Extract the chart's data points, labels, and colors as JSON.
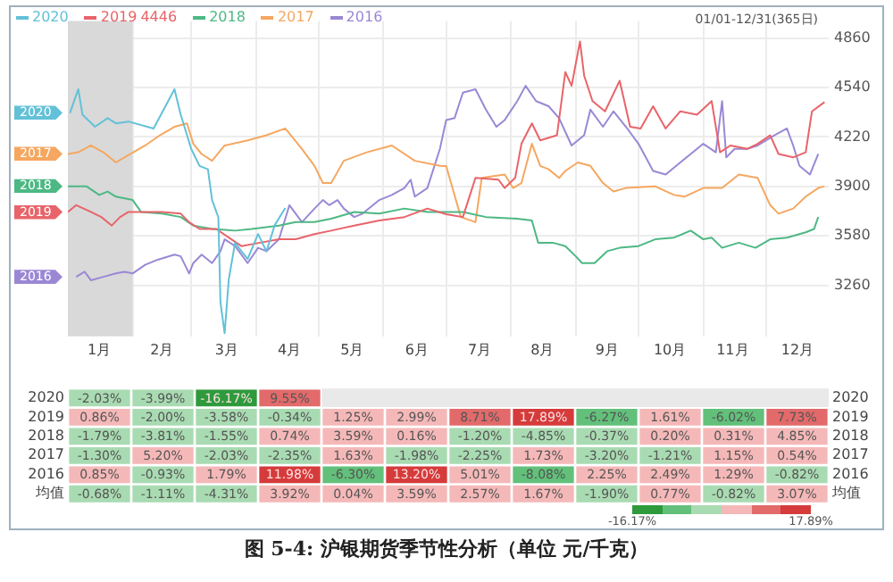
{
  "chart_data": [
    {
      "type": "line",
      "annotations": [
        "01/01-12/31(365日)",
        "4446"
      ],
      "xlim": [
        "--01-01",
        "--12-31"
      ],
      "xticks": [
        {
          "value": "--01-16",
          "label": "1月"
        },
        {
          "value": "--02-15",
          "label": "2月"
        },
        {
          "value": "--03-18",
          "label": "3月"
        },
        {
          "value": "--04-17",
          "label": "4月"
        },
        {
          "value": "--05-17",
          "label": "5月"
        },
        {
          "value": "--06-17",
          "label": "6月"
        },
        {
          "value": "--07-17",
          "label": "7月"
        },
        {
          "value": "--08-16",
          "label": "8月"
        },
        {
          "value": "--09-16",
          "label": "9月"
        },
        {
          "value": "--10-16",
          "label": "10月"
        },
        {
          "value": "--11-15",
          "label": "11月"
        },
        {
          "value": "--12-16",
          "label": "12月"
        },
        {
          "value": "--02-01",
          "label": null
        },
        {
          "value": "--03-01",
          "label": null
        },
        {
          "value": "--04-01",
          "label": null
        },
        {
          "value": "--05-01",
          "label": null
        },
        {
          "value": "--06-01",
          "label": null
        },
        {
          "value": "--07-01",
          "label": null
        },
        {
          "value": "--08-01",
          "label": null
        },
        {
          "value": "--09-01",
          "label": null
        },
        {
          "value": "--10-01",
          "label": null
        },
        {
          "value": "--11-01",
          "label": null
        },
        {
          "value": "--12-01",
          "label": null
        }
      ],
      "ylim": [
        2930,
        4970
      ],
      "yticks": [
        3260,
        3580,
        3900,
        4220,
        4540,
        4860
      ],
      "grid": true,
      "legend": "top left",
      "marker": "none",
      "line_style": "solid",
      "bands": [
        {
          "axis": "x",
          "from": "--01-01",
          "to": "--02-01",
          "color": "#d9d9d9"
        }
      ],
      "series": [
        {
          "name": "2020",
          "color": "#62c1d8",
          "x": [
            "--01-02",
            "--01-06",
            "--01-08",
            "--01-14",
            "--01-20",
            "--01-24",
            "--01-30",
            "--02-11",
            "--02-21",
            "--02-24",
            "--03-01",
            "--03-05",
            "--03-09",
            "--03-11",
            "--03-14",
            "--03-15",
            "--03-17",
            "--03-19",
            "--03-22",
            "--03-25",
            "--03-28",
            "--04-02",
            "--04-06",
            "--04-10",
            "--04-15"
          ],
          "values": [
            4375,
            4529,
            4364,
            4286,
            4342,
            4308,
            4320,
            4275,
            4529,
            4364,
            4143,
            4033,
            4011,
            3812,
            3700,
            3150,
            2950,
            3300,
            3536,
            3481,
            3430,
            3592,
            3480,
            3650,
            3760
          ]
        },
        {
          "name": "2019",
          "color": "#e8646a",
          "x": [
            "--01-01",
            "--01-05",
            "--01-12",
            "--01-17",
            "--01-22",
            "--01-26",
            "--01-30",
            "--02-07",
            "--02-15",
            "--02-24",
            "--02-28",
            "--03-05",
            "--03-13",
            "--03-19",
            "--03-25",
            "--04-03",
            "--04-12",
            "--04-20",
            "--04-29",
            "--05-07",
            "--05-18",
            "--05-30",
            "--06-11",
            "--06-22",
            "--07-01",
            "--07-09",
            "--07-15",
            "--07-26",
            "--07-29",
            "--08-03",
            "--08-06",
            "--08-11",
            "--08-15",
            "--08-23",
            "--08-27",
            "--08-30",
            "--09-03",
            "--09-05",
            "--09-09",
            "--09-15",
            "--09-22",
            "--09-27",
            "--10-02",
            "--10-08",
            "--10-14",
            "--10-21",
            "--10-29",
            "--11-05",
            "--11-09",
            "--11-14",
            "--11-22",
            "--11-27",
            "--12-03",
            "--12-07",
            "--12-14",
            "--12-20",
            "--12-23",
            "--12-29"
          ],
          "values": [
            3735,
            3779,
            3735,
            3702,
            3647,
            3702,
            3735,
            3735,
            3735,
            3724,
            3669,
            3625,
            3625,
            3569,
            3514,
            3536,
            3558,
            3558,
            3592,
            3614,
            3647,
            3680,
            3702,
            3757,
            3720,
            3702,
            3955,
            3944,
            3890,
            3955,
            4176,
            4308,
            4198,
            4231,
            4640,
            4551,
            4838,
            4617,
            4452,
            4386,
            4584,
            4286,
            4275,
            4419,
            4275,
            4386,
            4364,
            4452,
            4121,
            4165,
            4143,
            4176,
            4231,
            4110,
            4088,
            4121,
            4386,
            4446
          ]
        },
        {
          "name": "2018",
          "color": "#4db884",
          "x": [
            "--01-01",
            "--01-10",
            "--01-16",
            "--01-20",
            "--01-24",
            "--02-01",
            "--02-05",
            "--02-15",
            "--02-24",
            "--03-02",
            "--03-11",
            "--03-22",
            "--03-30",
            "--04-12",
            "--04-20",
            "--04-29",
            "--05-07",
            "--05-18",
            "--05-30",
            "--06-11",
            "--06-22",
            "--07-01",
            "--07-09",
            "--07-20",
            "--08-04",
            "--08-11",
            "--08-14",
            "--08-21",
            "--08-27",
            "--09-01",
            "--09-04",
            "--09-10",
            "--09-16",
            "--09-22",
            "--10-01",
            "--10-09",
            "--10-18",
            "--10-26",
            "--11-01",
            "--11-05",
            "--11-10",
            "--11-18",
            "--11-26",
            "--12-03",
            "--12-11",
            "--12-20",
            "--12-24",
            "--12-26"
          ],
          "values": [
            3900,
            3900,
            3845,
            3867,
            3834,
            3812,
            3735,
            3724,
            3702,
            3647,
            3625,
            3614,
            3625,
            3647,
            3669,
            3669,
            3691,
            3735,
            3724,
            3757,
            3735,
            3735,
            3735,
            3702,
            3691,
            3680,
            3536,
            3536,
            3514,
            3448,
            3404,
            3404,
            3481,
            3503,
            3514,
            3558,
            3569,
            3614,
            3558,
            3569,
            3503,
            3536,
            3503,
            3558,
            3569,
            3603,
            3625,
            3702
          ]
        },
        {
          "name": "2017",
          "color": "#f5a760",
          "x": [
            "--01-01",
            "--01-06",
            "--01-12",
            "--01-18",
            "--01-24",
            "--01-28",
            "--02-07",
            "--02-14",
            "--02-21",
            "--02-27",
            "--03-02",
            "--03-06",
            "--03-11",
            "--03-17",
            "--03-28",
            "--04-06",
            "--04-15",
            "--04-23",
            "--04-29",
            "--05-03",
            "--05-07",
            "--05-13",
            "--05-24",
            "--06-05",
            "--06-16",
            "--06-28",
            "--07-01",
            "--07-08",
            "--07-15",
            "--07-18",
            "--07-29",
            "--08-02",
            "--08-06",
            "--08-11",
            "--08-15",
            "--08-19",
            "--08-24",
            "--08-27",
            "--09-02",
            "--09-08",
            "--09-14",
            "--09-19",
            "--09-25",
            "--10-09",
            "--10-18",
            "--10-23",
            "--11-01",
            "--11-10",
            "--11-18",
            "--11-27",
            "--12-03",
            "--12-07",
            "--12-14",
            "--12-20",
            "--12-26",
            "--12-29"
          ],
          "values": [
            4110,
            4121,
            4165,
            4121,
            4055,
            4088,
            4165,
            4231,
            4286,
            4308,
            4176,
            4110,
            4066,
            4165,
            4198,
            4231,
            4275,
            4143,
            4033,
            3922,
            3922,
            4066,
            4121,
            4165,
            4066,
            4033,
            4032,
            3702,
            3669,
            3955,
            3977,
            3890,
            3922,
            4176,
            4033,
            4011,
            3955,
            4000,
            4055,
            4033,
            3922,
            3867,
            3890,
            3900,
            3845,
            3834,
            3890,
            3890,
            3977,
            3955,
            3779,
            3724,
            3757,
            3834,
            3890,
            3900
          ]
        },
        {
          "name": "2016",
          "color": "#9a88d4",
          "x": [
            "--01-05",
            "--01-09",
            "--01-12",
            "--01-18",
            "--01-24",
            "--01-28",
            "--02-01",
            "--02-07",
            "--02-13",
            "--02-21",
            "--02-24",
            "--02-28",
            "--03-02",
            "--03-06",
            "--03-11",
            "--03-15",
            "--03-17",
            "--03-22",
            "--03-28",
            "--04-02",
            "--04-06",
            "--04-12",
            "--04-17",
            "--04-23",
            "--04-29",
            "--05-03",
            "--05-06",
            "--05-10",
            "--05-13",
            "--05-18",
            "--05-22",
            "--05-30",
            "--06-05",
            "--06-11",
            "--06-14",
            "--06-16",
            "--06-22",
            "--06-28",
            "--07-01",
            "--07-05",
            "--07-09",
            "--07-15",
            "--07-20",
            "--07-25",
            "--07-29",
            "--08-04",
            "--08-08",
            "--08-13",
            "--08-19",
            "--08-24",
            "--08-30",
            "--09-05",
            "--09-08",
            "--09-14",
            "--09-19",
            "--09-25",
            "--10-01",
            "--10-08",
            "--10-14",
            "--10-21",
            "--10-26",
            "--11-01",
            "--11-07",
            "--11-10",
            "--11-12",
            "--11-16",
            "--11-22",
            "--11-27",
            "--12-05",
            "--12-11",
            "--12-14",
            "--12-17",
            "--12-22",
            "--12-26"
          ],
          "values": [
            3315,
            3348,
            3293,
            3315,
            3337,
            3348,
            3337,
            3393,
            3426,
            3459,
            3448,
            3337,
            3404,
            3459,
            3404,
            3481,
            3558,
            3514,
            3404,
            3503,
            3481,
            3558,
            3779,
            3669,
            3757,
            3812,
            3779,
            3812,
            3757,
            3702,
            3724,
            3812,
            3845,
            3890,
            3944,
            3834,
            3890,
            4143,
            4330,
            4342,
            4507,
            4529,
            4397,
            4286,
            4330,
            4452,
            4551,
            4452,
            4419,
            4342,
            4165,
            4231,
            4397,
            4286,
            4386,
            4286,
            4176,
            4000,
            3977,
            4055,
            4110,
            4176,
            4121,
            4452,
            4088,
            4143,
            4143,
            4165,
            4231,
            4275,
            4165,
            4033,
            3977,
            4110
          ]
        }
      ]
    },
    {
      "type": "heatmap",
      "title": "图 5-4: 沪银期货季节性分析（单位 元/千克）",
      "categories": [
        null,
        null,
        null,
        null,
        null,
        null,
        null,
        null,
        null,
        null,
        null,
        null
      ],
      "y_categories": [
        "2020",
        "2019",
        "2018",
        "2017",
        "2016",
        "均值"
      ],
      "y2_categories": [
        "2020",
        "2019",
        "2018",
        "2017",
        "2016",
        "均值"
      ],
      "cells": [
        [
          -2.03,
          -3.99,
          -16.17,
          9.55,
          null,
          null,
          null,
          null,
          null,
          null,
          null,
          null
        ],
        [
          0.86,
          -2.0,
          -3.58,
          -0.34,
          1.25,
          2.99,
          8.71,
          17.89,
          -6.27,
          1.61,
          -6.02,
          7.73
        ],
        [
          -1.79,
          -3.81,
          -1.55,
          0.74,
          3.59,
          0.16,
          -1.2,
          -4.85,
          -0.37,
          0.2,
          0.31,
          4.85
        ],
        [
          -1.3,
          5.2,
          -2.03,
          -2.35,
          1.63,
          -1.98,
          -2.25,
          1.73,
          -3.2,
          -1.21,
          1.15,
          0.54
        ],
        [
          0.85,
          -0.93,
          1.79,
          11.98,
          -6.3,
          13.2,
          5.01,
          -8.08,
          2.25,
          2.49,
          1.29,
          -0.82
        ],
        [
          -0.68,
          -1.11,
          -4.31,
          3.92,
          0.04,
          3.59,
          2.57,
          1.67,
          -1.9,
          0.77,
          -0.82,
          3.07
        ]
      ],
      "cell_labels": [
        [
          "-2.03%",
          "-3.99%",
          "-16.17%",
          "9.55%",
          null,
          null,
          null,
          null,
          null,
          null,
          null,
          null
        ],
        [
          "0.86%",
          "-2.00%",
          "-3.58%",
          "-0.34%",
          "1.25%",
          "2.99%",
          "8.71%",
          "17.89%",
          "-6.27%",
          "1.61%",
          "-6.02%",
          "7.73%"
        ],
        [
          "-1.79%",
          "-3.81%",
          "-1.55%",
          "0.74%",
          "3.59%",
          "0.16%",
          "-1.20%",
          "-4.85%",
          "-0.37%",
          "0.20%",
          "0.31%",
          "4.85%"
        ],
        [
          "-1.30%",
          "5.20%",
          "-2.03%",
          "-2.35%",
          "1.63%",
          "-1.98%",
          "-2.25%",
          "1.73%",
          "-3.20%",
          "-1.21%",
          "1.15%",
          "0.54%"
        ],
        [
          "0.85%",
          "-0.93%",
          "1.79%",
          "11.98%",
          "-6.30%",
          "13.20%",
          "5.01%",
          "-8.08%",
          "2.25%",
          "2.49%",
          "1.29%",
          "-0.82%"
        ],
        [
          "-0.68%",
          "-1.11%",
          "-4.31%",
          "3.92%",
          "0.04%",
          "3.59%",
          "2.57%",
          "1.67%",
          "-1.90%",
          "0.77%",
          "-0.82%",
          "3.07%"
        ]
      ],
      "clim": [
        -16.17,
        17.89
      ],
      "cticks": [
        {
          "value": -16.17,
          "label": "-16.17%"
        },
        {
          "value": 17.89,
          "label": "17.89%"
        }
      ],
      "colors": [
        "#2f9a3c",
        "#62c07a",
        "#a9dbb2",
        "#f5b8b8",
        "#e26a6a",
        "#d63b3b"
      ]
    }
  ]
}
